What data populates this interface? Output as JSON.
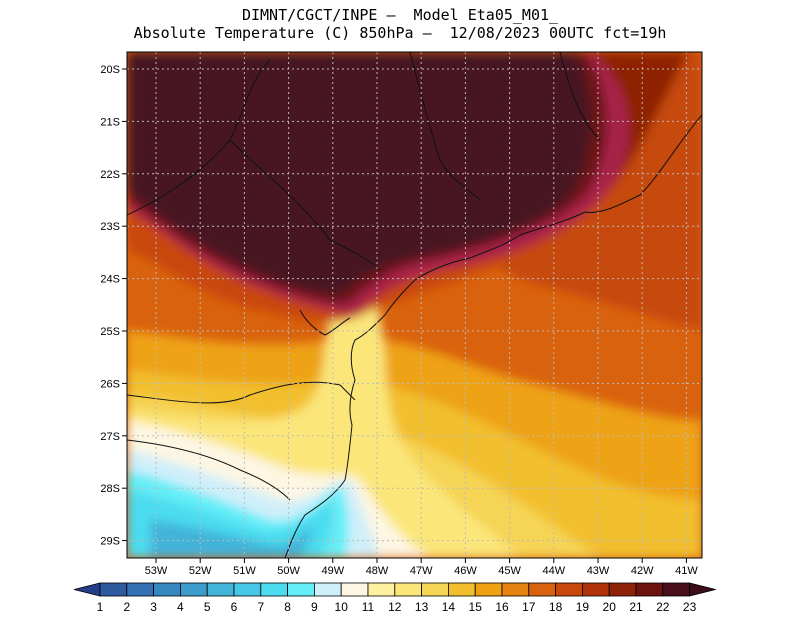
{
  "header": {
    "line1": "DIMNT/CGCT/INPE –  Model Eta05_M01_",
    "line2": "Absolute Temperature (C) 850hPa –  12/08/2023 00UTC fct=19h"
  },
  "map": {
    "lat_labels": [
      "20S",
      "21S",
      "22S",
      "23S",
      "24S",
      "25S",
      "26S",
      "27S",
      "28S",
      "29S"
    ],
    "lon_labels": [
      "53W",
      "52W",
      "51W",
      "50W",
      "49W",
      "48W",
      "47W",
      "46W",
      "45W",
      "44W",
      "43W",
      "42W",
      "41W"
    ]
  },
  "colorbar": {
    "labels": [
      "1",
      "2",
      "3",
      "4",
      "5",
      "6",
      "7",
      "8",
      "9",
      "10",
      "11",
      "12",
      "13",
      "14",
      "15",
      "16",
      "17",
      "18",
      "19",
      "20",
      "21",
      "22",
      "23"
    ],
    "colors": [
      "#233f8a",
      "#2e5aa0",
      "#3371b4",
      "#3686c0",
      "#3d9ccc",
      "#42b3d9",
      "#45c8e6",
      "#4cdcef",
      "#64eef8",
      "#cfeffa",
      "#fdf6e3",
      "#fff0a0",
      "#fbe67a",
      "#f6d454",
      "#f2bf2e",
      "#eea212",
      "#e68310",
      "#d9620e",
      "#c9470c",
      "#b03208",
      "#8e2206",
      "#6d1410",
      "#4a0f1c",
      "#3d0c1a"
    ]
  },
  "field_colors": {
    "darkest": "#471620",
    "dark_red": "#6e1418",
    "red": "#9a1e1c",
    "magenta": "#a8214a",
    "orange_dark": "#c64a10",
    "orange": "#d9620e",
    "orange_light": "#e68310",
    "amber": "#eea212",
    "gold": "#f2bf2e",
    "yellow": "#f6d454",
    "pale_yellow": "#fbe67a",
    "cream": "#fdf6e3",
    "pale_blue": "#cfeffa",
    "cyan": "#64eef8",
    "aqua": "#4cdcef",
    "blue": "#42b3d9"
  }
}
